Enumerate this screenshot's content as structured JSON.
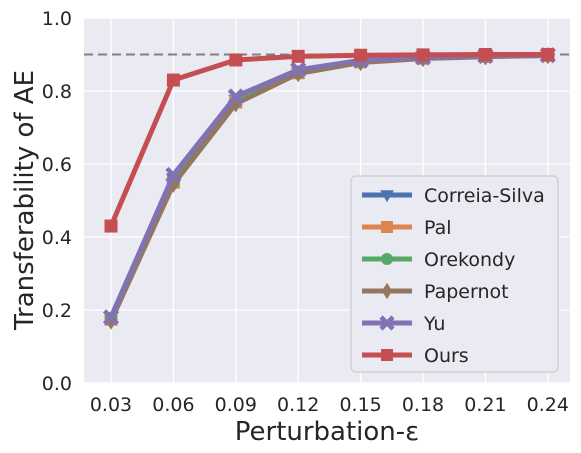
{
  "chart_data": {
    "type": "line",
    "xlabel": "Perturbation-ε",
    "ylabel": "Transferability of AE",
    "categories": [
      "0.03",
      "0.06",
      "0.09",
      "0.12",
      "0.15",
      "0.18",
      "0.21",
      "0.24"
    ],
    "yticks": [
      "0.0",
      "0.2",
      "0.4",
      "0.6",
      "0.8",
      "1.0"
    ],
    "ylim": [
      0,
      1
    ],
    "grid": true,
    "reference_line": {
      "y": 0.9,
      "style": "dashed",
      "color": "#808080"
    },
    "legend_position": "lower-right",
    "background": "#eaeaf2",
    "series": [
      {
        "name": "Correia-Silva",
        "marker": "triangle-down",
        "color": "#4c72b0",
        "values": [
          0.18,
          0.56,
          0.775,
          0.85,
          0.88,
          0.89,
          0.895,
          0.898
        ]
      },
      {
        "name": "Pal",
        "marker": "square",
        "color": "#dd8452",
        "values": [
          0.175,
          0.55,
          0.77,
          0.85,
          0.88,
          0.89,
          0.895,
          0.898
        ]
      },
      {
        "name": "Orekondy",
        "marker": "circle",
        "color": "#55a868",
        "values": [
          0.175,
          0.55,
          0.77,
          0.85,
          0.88,
          0.89,
          0.895,
          0.898
        ]
      },
      {
        "name": "Papernot",
        "marker": "diamond",
        "color": "#937860",
        "values": [
          0.17,
          0.545,
          0.765,
          0.848,
          0.878,
          0.889,
          0.894,
          0.897
        ]
      },
      {
        "name": "Yu",
        "marker": "x",
        "color": "#8172b3",
        "values": [
          0.18,
          0.57,
          0.785,
          0.858,
          0.884,
          0.892,
          0.896,
          0.898
        ]
      },
      {
        "name": "Ours",
        "marker": "square",
        "color": "#c44e52",
        "values": [
          0.43,
          0.83,
          0.885,
          0.895,
          0.898,
          0.899,
          0.9,
          0.9
        ]
      }
    ]
  }
}
